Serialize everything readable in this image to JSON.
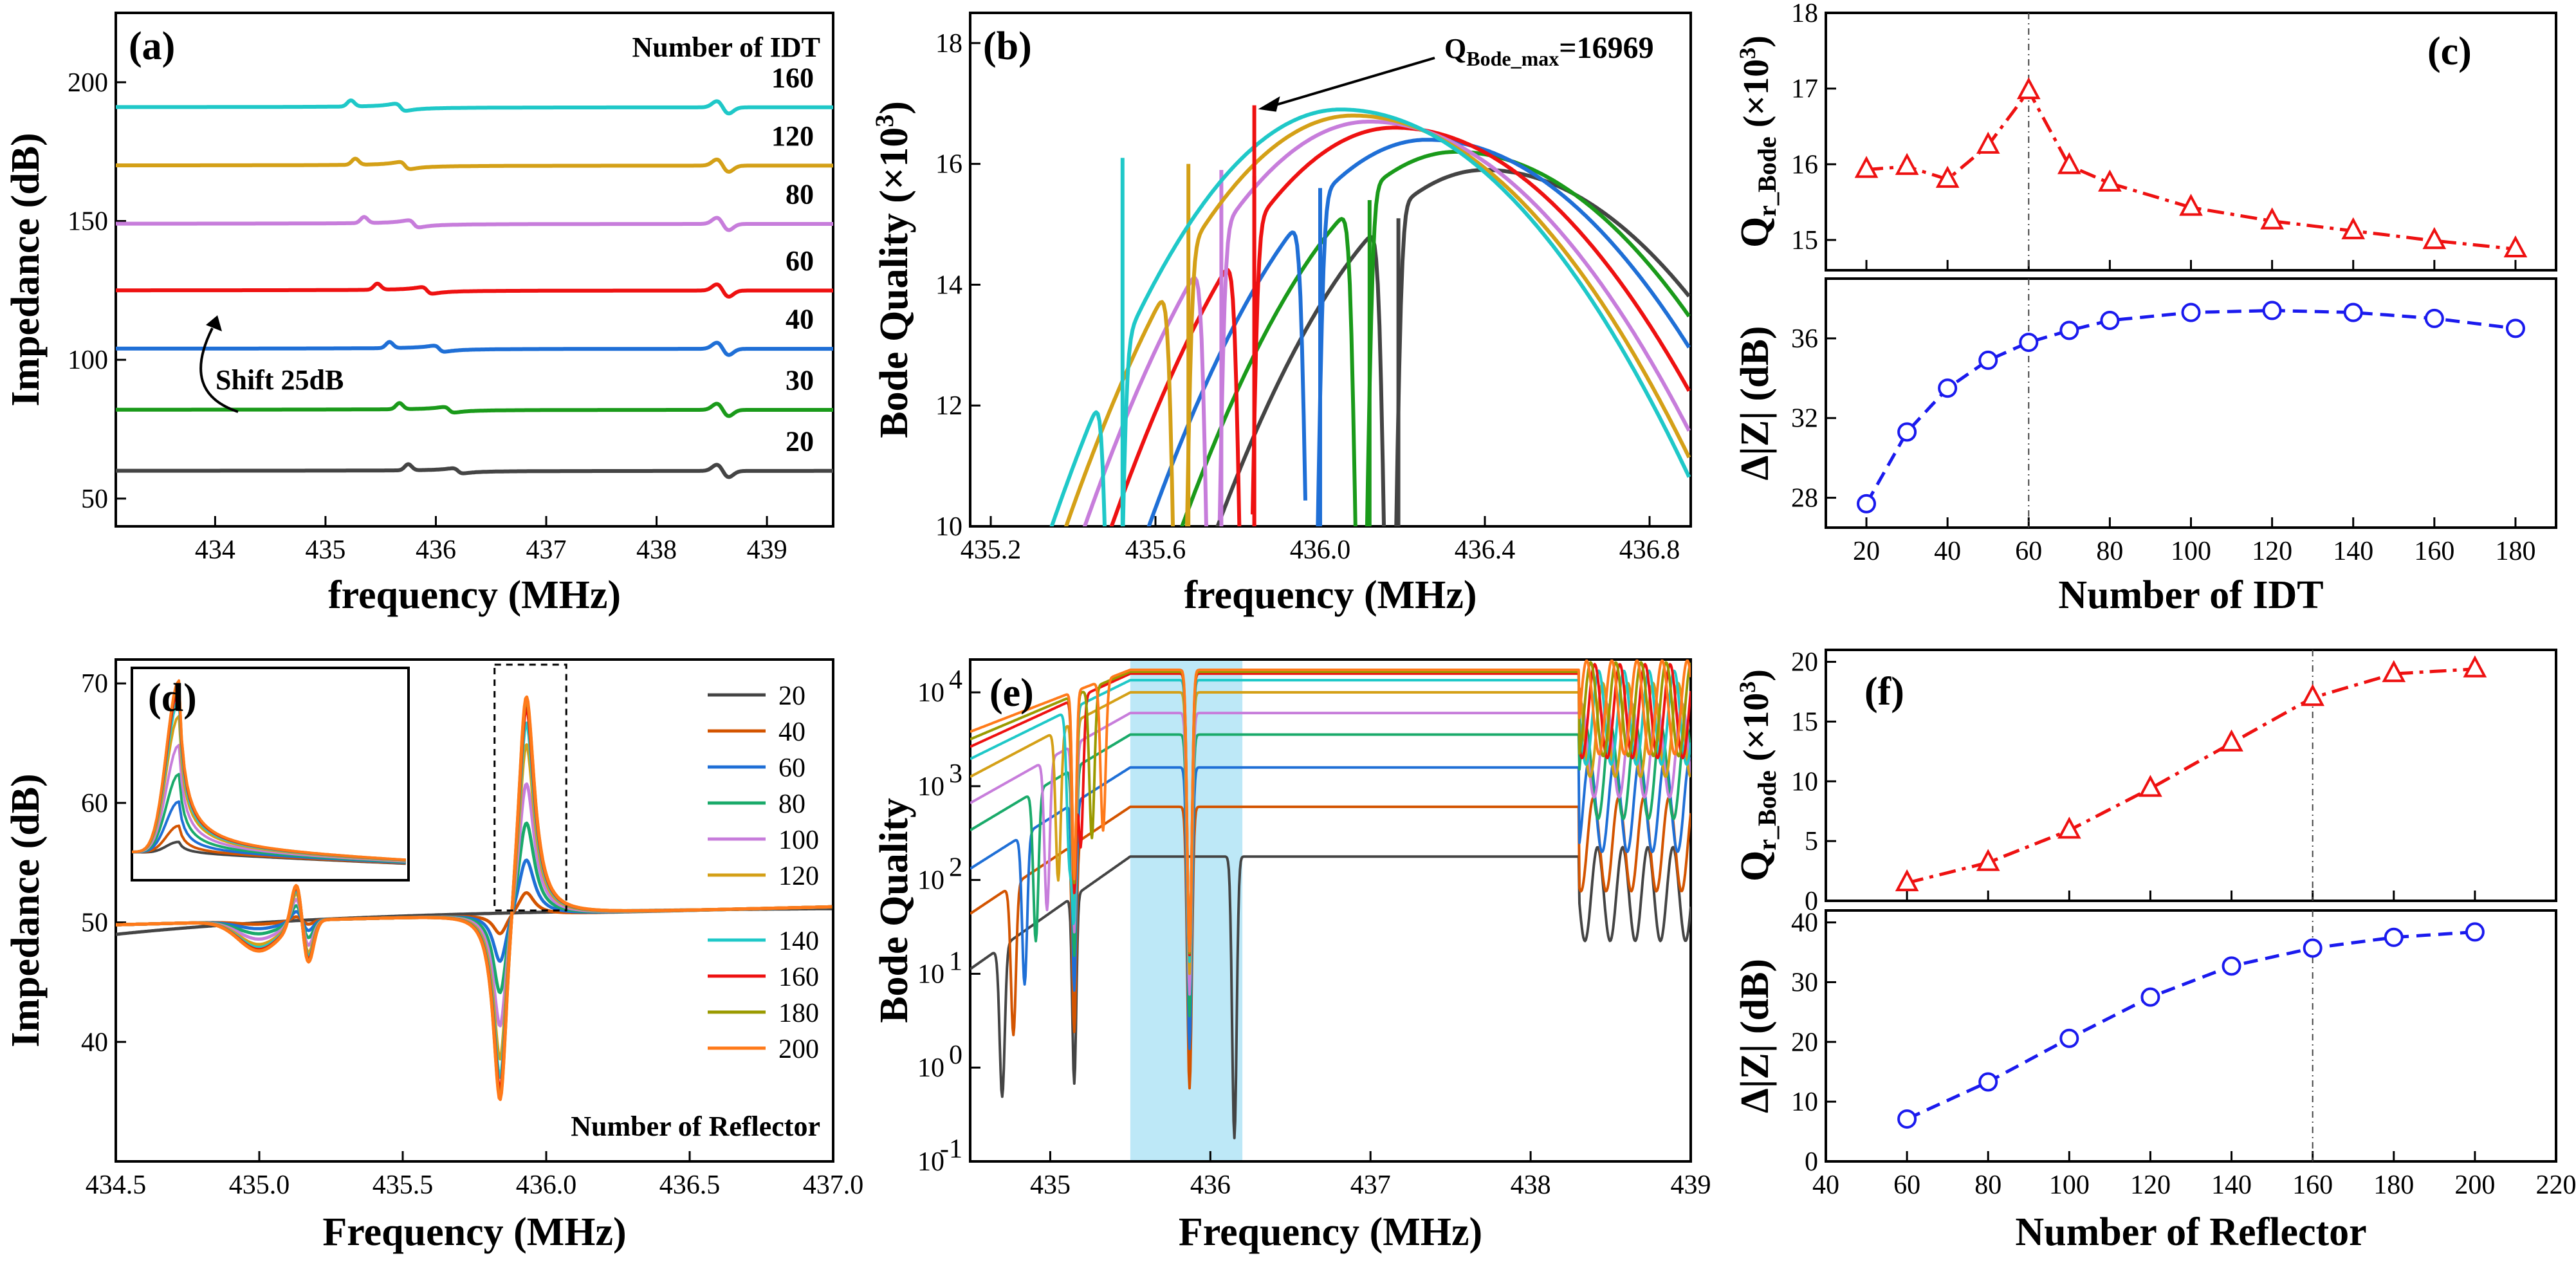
{
  "chart_data": [
    {
      "id": "a",
      "type": "line",
      "panel_label": "(a)",
      "xlabel": "frequency (MHz)",
      "ylabel": "Impedance (dB)",
      "xlim": [
        433.1,
        439.6
      ],
      "ylim": [
        40,
        225
      ],
      "xticks": [
        "434",
        "435",
        "436",
        "437",
        "438",
        "439"
      ],
      "yticks": [
        "50",
        "100",
        "150",
        "200"
      ],
      "legend_title": "Number of IDT",
      "annotation": "Shift 25dB",
      "series": [
        {
          "name": "20",
          "color": "#444444",
          "base": 60,
          "f0": 436.2,
          "amp": 10
        },
        {
          "name": "30",
          "color": "#1a9a1a",
          "base": 82,
          "f0": 436.12,
          "amp": 11
        },
        {
          "name": "40",
          "color": "#1f6fd6",
          "base": 104,
          "f0": 436.03,
          "amp": 12
        },
        {
          "name": "60",
          "color": "#ee1111",
          "base": 125,
          "f0": 435.92,
          "amp": 13
        },
        {
          "name": "80",
          "color": "#c77ddb",
          "base": 149,
          "f0": 435.8,
          "amp": 14
        },
        {
          "name": "120",
          "color": "#d4a017",
          "base": 170,
          "f0": 435.72,
          "amp": 14
        },
        {
          "name": "160",
          "color": "#1fc8c8",
          "base": 191,
          "f0": 435.68,
          "amp": 14
        }
      ]
    },
    {
      "id": "b",
      "type": "line",
      "panel_label": "(b)",
      "xlabel": "frequency (MHz)",
      "ylabel": "Bode Quality (×10³)",
      "xlim": [
        435.15,
        436.9
      ],
      "ylim": [
        10,
        18.5
      ],
      "xticks": [
        "435.2",
        "435.6",
        "436.0",
        "436.4",
        "436.8"
      ],
      "yticks": [
        "10",
        "12",
        "14",
        "16",
        "18"
      ],
      "annotation": "Q_Bode_max=16969",
      "qmax_freq": 435.84,
      "qmax_value": 16.97,
      "series": [
        {
          "name": "20",
          "color": "#444444",
          "peak_f": 436.4,
          "peak_q": 15.9,
          "notch": 436.17
        },
        {
          "name": "30",
          "color": "#1a9a1a",
          "peak_f": 436.33,
          "peak_q": 16.2,
          "notch": 436.1
        },
        {
          "name": "40",
          "color": "#1f6fd6",
          "peak_f": 436.26,
          "peak_q": 16.4,
          "notch": 435.98
        },
        {
          "name": "60",
          "color": "#ee1111",
          "peak_f": 436.18,
          "peak_q": 16.6,
          "notch": 435.82
        },
        {
          "name": "80",
          "color": "#c77ddb",
          "peak_f": 436.12,
          "peak_q": 16.7,
          "notch": 435.74
        },
        {
          "name": "120",
          "color": "#d4a017",
          "peak_f": 436.08,
          "peak_q": 16.8,
          "notch": 435.66
        },
        {
          "name": "160",
          "color": "#1fc8c8",
          "peak_f": 436.05,
          "peak_q": 16.9,
          "notch": 435.5
        }
      ]
    },
    {
      "id": "c_top",
      "type": "line",
      "panel_label": "(c)",
      "ylabel": "Q_r_Bode (×10³)",
      "x": [
        20,
        30,
        40,
        50,
        60,
        70,
        80,
        100,
        120,
        140,
        160,
        180
      ],
      "values": [
        15.93,
        15.97,
        15.8,
        16.25,
        16.97,
        15.98,
        15.75,
        15.43,
        15.25,
        15.12,
        14.99,
        14.88
      ],
      "xlim": [
        10,
        190
      ],
      "ylim": [
        14.6,
        18
      ],
      "yticks": [
        "15",
        "16",
        "17",
        "18"
      ],
      "color": "#ee1111",
      "marker": "triangle",
      "vline": 60
    },
    {
      "id": "c_bot",
      "type": "line",
      "xlabel": "Number of IDT",
      "ylabel": "Δ|Z| (dB)",
      "x": [
        20,
        30,
        40,
        50,
        60,
        70,
        80,
        100,
        120,
        140,
        160,
        180
      ],
      "values": [
        27.7,
        31.3,
        33.5,
        34.9,
        35.8,
        36.4,
        36.9,
        37.3,
        37.4,
        37.3,
        37.0,
        36.5
      ],
      "xlim": [
        10,
        190
      ],
      "ylim": [
        26.5,
        39
      ],
      "xticks": [
        "20",
        "40",
        "60",
        "80",
        "100",
        "120",
        "140",
        "160",
        "180"
      ],
      "yticks": [
        "28",
        "32",
        "36"
      ],
      "color": "#1a1aee",
      "marker": "circle",
      "vline": 60
    },
    {
      "id": "d",
      "type": "line",
      "panel_label": "(d)",
      "xlabel": "Frequency (MHz)",
      "ylabel": "Impedance (dB)",
      "xlim": [
        434.5,
        437.0
      ],
      "ylim": [
        30,
        72
      ],
      "xticks": [
        "434.5",
        "435.0",
        "435.5",
        "436.0",
        "436.5",
        "437.0"
      ],
      "yticks": [
        "40",
        "50",
        "60",
        "70"
      ],
      "legend_title": "Number of Reflector",
      "series": [
        {
          "name": "20",
          "color": "#444444",
          "depth": 0.0
        },
        {
          "name": "40",
          "color": "#d35400",
          "depth": 0.1
        },
        {
          "name": "60",
          "color": "#1f6fd6",
          "depth": 0.25
        },
        {
          "name": "80",
          "color": "#1aaa6a",
          "depth": 0.42
        },
        {
          "name": "100",
          "color": "#c77ddb",
          "depth": 0.6
        },
        {
          "name": "120",
          "color": "#d4a017",
          "depth": 0.78
        },
        {
          "name": "140",
          "color": "#1fc8c8",
          "depth": 0.88
        },
        {
          "name": "160",
          "color": "#ee1111",
          "depth": 0.95
        },
        {
          "name": "180",
          "color": "#9a9a00",
          "depth": 0.99
        },
        {
          "name": "200",
          "color": "#ff7a1a",
          "depth": 1.0
        }
      ]
    },
    {
      "id": "e",
      "type": "line",
      "panel_label": "(e)",
      "xlabel": "Frequency (MHz)",
      "ylabel": "Bode Quality",
      "xlim": [
        434.5,
        439.0
      ],
      "ylim_log10": [
        -1,
        4.35
      ],
      "xticks": [
        "435",
        "436",
        "437",
        "438",
        "439"
      ],
      "yticks": [
        "10",
        "10",
        "10",
        "10",
        "10",
        "10"
      ],
      "ytick_exp": [
        "-1",
        "0",
        "1",
        "2",
        "3",
        "4"
      ],
      "highlight": [
        435.5,
        436.2
      ],
      "series": [
        {
          "name": "20",
          "color": "#444444",
          "plateau_log": 2.25
        },
        {
          "name": "40",
          "color": "#d35400",
          "plateau_log": 2.78
        },
        {
          "name": "60",
          "color": "#1f6fd6",
          "plateau_log": 3.2
        },
        {
          "name": "80",
          "color": "#1aaa6a",
          "plateau_log": 3.55
        },
        {
          "name": "100",
          "color": "#c77ddb",
          "plateau_log": 3.78
        },
        {
          "name": "120",
          "color": "#d4a017",
          "plateau_log": 4.0
        },
        {
          "name": "140",
          "color": "#1fc8c8",
          "plateau_log": 4.13
        },
        {
          "name": "160",
          "color": "#ee1111",
          "plateau_log": 4.2
        },
        {
          "name": "180",
          "color": "#9a9a00",
          "plateau_log": 4.22
        },
        {
          "name": "200",
          "color": "#ff7a1a",
          "plateau_log": 4.24
        }
      ]
    },
    {
      "id": "f_top",
      "type": "line",
      "panel_label": "(f)",
      "ylabel": "Q_r_Bode (×10³)",
      "x": [
        60,
        80,
        100,
        120,
        140,
        160,
        180,
        200
      ],
      "values": [
        1.5,
        3.2,
        5.9,
        9.4,
        13.2,
        17.0,
        19.0,
        19.4
      ],
      "xlim": [
        40,
        220
      ],
      "ylim": [
        0,
        21
      ],
      "yticks": [
        "0",
        "5",
        "10",
        "15",
        "20"
      ],
      "color": "#ee1111",
      "marker": "triangle",
      "vline": 160
    },
    {
      "id": "f_bot",
      "type": "line",
      "xlabel": "Number of Reflector",
      "ylabel": "Δ|Z| (dB)",
      "x": [
        60,
        80,
        100,
        120,
        140,
        160,
        180,
        200
      ],
      "values": [
        7.1,
        13.3,
        20.6,
        27.5,
        32.7,
        35.7,
        37.5,
        38.4
      ],
      "xlim": [
        40,
        220
      ],
      "ylim": [
        0,
        42
      ],
      "xticks": [
        "40",
        "60",
        "80",
        "100",
        "120",
        "140",
        "160",
        "180",
        "200",
        "220"
      ],
      "yticks": [
        "0",
        "10",
        "20",
        "30",
        "40"
      ],
      "color": "#1a1aee",
      "marker": "circle",
      "vline": 160
    }
  ]
}
